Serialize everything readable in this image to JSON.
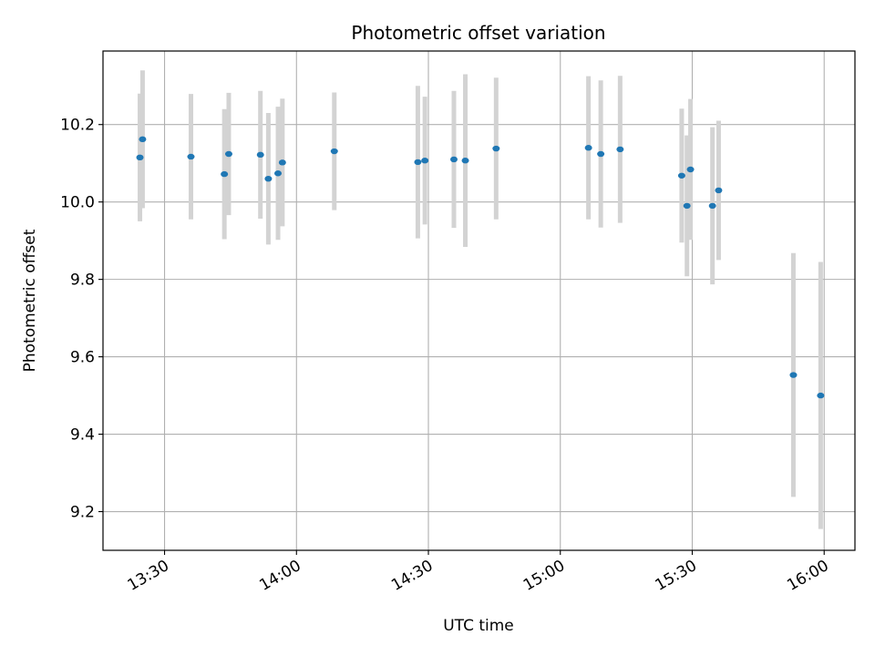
{
  "chart_data": {
    "type": "scatter",
    "title": "Photometric offset variation",
    "xlabel": "UTC time",
    "ylabel": "Photometric offset",
    "x_ticks": [
      "13:30",
      "14:00",
      "14:30",
      "15:00",
      "15:30",
      "16:00"
    ],
    "y_ticks": [
      "9.2",
      "9.4",
      "9.6",
      "9.8",
      "10.0",
      "10.2"
    ],
    "xlim": [
      "13:16",
      "16:07"
    ],
    "ylim": [
      9.1,
      10.39
    ],
    "grid": true,
    "colors": {
      "points": "#1f77b4",
      "errorbars": "#d3d3d3",
      "grid": "#b0b0b0"
    },
    "series": [
      {
        "points": [
          {
            "x": "13:24.4",
            "y": 10.115,
            "yerr": 0.165
          },
          {
            "x": "13:25.0",
            "y": 10.162,
            "yerr": 0.178
          },
          {
            "x": "13:36.0",
            "y": 10.117,
            "yerr": 0.162
          },
          {
            "x": "13:43.6",
            "y": 10.072,
            "yerr": 0.168
          },
          {
            "x": "13:44.6",
            "y": 10.124,
            "yerr": 0.158
          },
          {
            "x": "13:51.8",
            "y": 10.122,
            "yerr": 0.165
          },
          {
            "x": "13:53.6",
            "y": 10.06,
            "yerr": 0.17
          },
          {
            "x": "13:55.8",
            "y": 10.074,
            "yerr": 0.172
          },
          {
            "x": "13:56.8",
            "y": 10.102,
            "yerr": 0.165
          },
          {
            "x": "14:08.6",
            "y": 10.131,
            "yerr": 0.152
          },
          {
            "x": "14:27.6",
            "y": 10.103,
            "yerr": 0.197
          },
          {
            "x": "14:29.2",
            "y": 10.107,
            "yerr": 0.165
          },
          {
            "x": "14:35.8",
            "y": 10.11,
            "yerr": 0.177
          },
          {
            "x": "14:38.4",
            "y": 10.107,
            "yerr": 0.223
          },
          {
            "x": "14:45.4",
            "y": 10.138,
            "yerr": 0.183
          },
          {
            "x": "15:06.4",
            "y": 10.14,
            "yerr": 0.185
          },
          {
            "x": "15:09.2",
            "y": 10.124,
            "yerr": 0.19
          },
          {
            "x": "15:13.6",
            "y": 10.136,
            "yerr": 0.19
          },
          {
            "x": "15:27.6",
            "y": 10.068,
            "yerr": 0.173
          },
          {
            "x": "15:28.8",
            "y": 9.99,
            "yerr": 0.182
          },
          {
            "x": "15:29.6",
            "y": 10.084,
            "yerr": 0.182
          },
          {
            "x": "15:34.6",
            "y": 9.99,
            "yerr": 0.203
          },
          {
            "x": "15:36.0",
            "y": 10.03,
            "yerr": 0.18
          },
          {
            "x": "15:53.0",
            "y": 9.553,
            "yerr": 0.315
          },
          {
            "x": "15:59.2",
            "y": 9.5,
            "yerr": 0.345
          }
        ]
      }
    ]
  }
}
